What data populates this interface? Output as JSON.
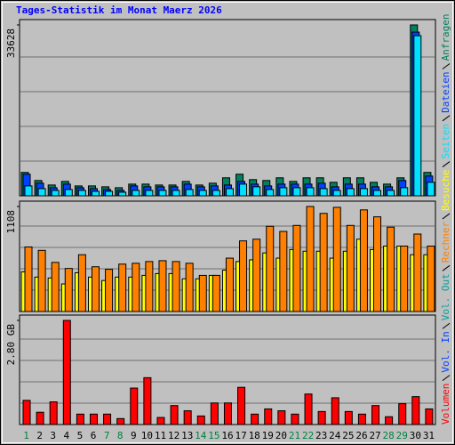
{
  "chart_data": [
    {
      "type": "bar",
      "title": "Tages-Statistik im Monat Maerz 2026",
      "ylim": [
        0,
        33628
      ],
      "yticks": [
        33628
      ],
      "series": [
        {
          "name": "Anfragen",
          "color": "#00805c",
          "values": [
            4602,
            3009,
            2124,
            2832,
            1947,
            1947,
            1770,
            1593,
            2301,
            2301,
            2124,
            2124,
            2832,
            2124,
            2478,
            3540,
            4248,
            3186,
            3009,
            3540,
            2832,
            3540,
            3540,
            2655,
            3540,
            3540,
            2655,
            2301,
            3540,
            33628,
            4602
          ]
        },
        {
          "name": "Dateien",
          "color": "#0040ff",
          "values": [
            4248,
            2478,
            1593,
            2301,
            1593,
            1416,
            1239,
            1062,
            1947,
            1770,
            1770,
            1770,
            2301,
            1770,
            1947,
            2124,
            2832,
            2301,
            1947,
            2301,
            2301,
            2301,
            2478,
            1770,
            2301,
            2301,
            1770,
            1770,
            3009,
            32214,
            3894
          ]
        },
        {
          "name": "Seiten",
          "color": "#00e0ff",
          "values": [
            1947,
            1416,
            1062,
            1239,
            1062,
            885,
            885,
            708,
            1062,
            1062,
            1062,
            1062,
            1239,
            1062,
            1062,
            1416,
            2301,
            1770,
            1239,
            1593,
            1593,
            1593,
            1416,
            1062,
            1416,
            1416,
            1062,
            1062,
            1593,
            31506,
            2655
          ]
        }
      ]
    },
    {
      "type": "bar",
      "ylim": [
        0,
        1108
      ],
      "yticks": [
        1108
      ],
      "series": [
        {
          "name": "Besuche",
          "color": "#ffff00",
          "values": [
            418,
            363,
            354,
            291,
            409,
            363,
            327,
            363,
            363,
            381,
            400,
            400,
            345,
            345,
            381,
            436,
            527,
            545,
            618,
            563,
            654,
            636,
            636,
            563,
            636,
            763,
            654,
            690,
            690,
            599,
            599
          ]
        },
        {
          "name": "Rechner",
          "color": "#ff8000",
          "values": [
            681,
            645,
            518,
            454,
            599,
            472,
            445,
            500,
            509,
            527,
            536,
            527,
            509,
            381,
            381,
            563,
            745,
            763,
            899,
            845,
            908,
            1108,
            1035,
            1099,
            908,
            1072,
            999,
            890,
            690,
            817,
            690
          ]
        }
      ]
    },
    {
      "type": "bar",
      "ylim": [
        0,
        2.8
      ],
      "yticks": [
        {
          "value": 2.8,
          "label": "2.80 GB"
        }
      ],
      "series": [
        {
          "name": "Volumen",
          "color": "#ff0000",
          "values": [
            0.65,
            0.33,
            0.61,
            2.8,
            0.28,
            0.28,
            0.28,
            0.16,
            0.98,
            1.26,
            0.19,
            0.51,
            0.37,
            0.23,
            0.58,
            0.58,
            1.0,
            0.28,
            0.42,
            0.37,
            0.28,
            0.82,
            0.35,
            0.72,
            0.35,
            0.28,
            0.51,
            0.21,
            0.56,
            0.75,
            0.42
          ]
        }
      ],
      "legend_only": [
        {
          "name": "Vol. In",
          "color": "#0040ff"
        },
        {
          "name": "Vol. Out",
          "color": "#00a0a0"
        }
      ],
      "categories": [
        "1",
        "2",
        "3",
        "4",
        "5",
        "6",
        "7",
        "8",
        "9",
        "10",
        "11",
        "12",
        "13",
        "14",
        "15",
        "16",
        "17",
        "18",
        "19",
        "20",
        "21",
        "22",
        "23",
        "24",
        "25",
        "26",
        "27",
        "28",
        "29",
        "30",
        "31"
      ],
      "label_colors": [
        "#008040",
        "#000000",
        "#000000",
        "#000000",
        "#000000",
        "#000000",
        "#008040",
        "#008040",
        "#000000",
        "#000000",
        "#000000",
        "#000000",
        "#000000",
        "#008040",
        "#008040",
        "#000000",
        "#000000",
        "#000000",
        "#000000",
        "#000000",
        "#008040",
        "#008040",
        "#000000",
        "#000000",
        "#000000",
        "#000000",
        "#000000",
        "#008040",
        "#008040",
        "#000000",
        "#000000"
      ]
    }
  ]
}
